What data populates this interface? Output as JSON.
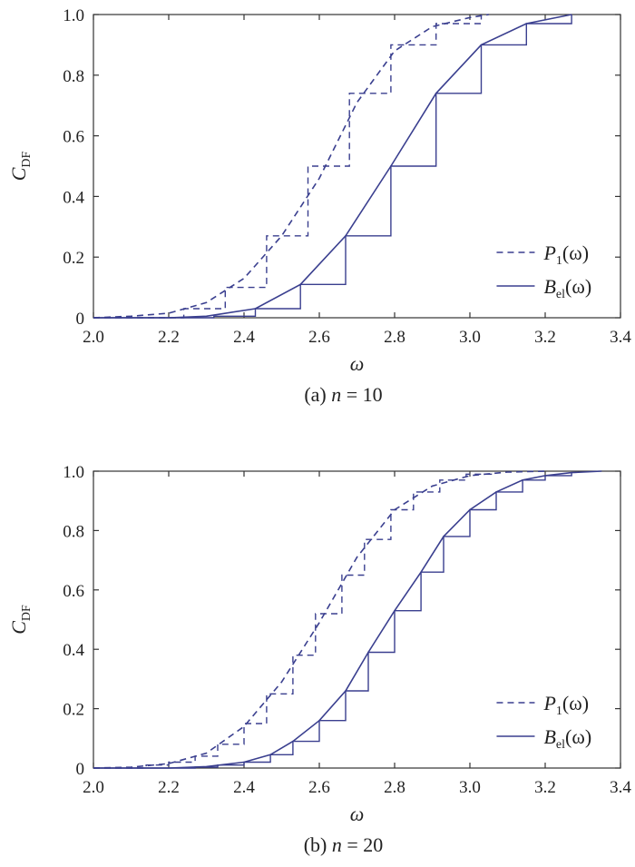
{
  "chart_data": [
    {
      "type": "line",
      "caption": {
        "prefix": "(a)",
        "var": "n",
        "eq": "= 10"
      },
      "xlabel": "ω",
      "ylabel": {
        "main": "C",
        "sub": "DF"
      },
      "xlim": [
        2.0,
        3.4
      ],
      "ylim": [
        0,
        1.0
      ],
      "xticks": [
        "2.0",
        "2.2",
        "2.4",
        "2.6",
        "2.8",
        "3.0",
        "3.2",
        "3.4"
      ],
      "yticks": [
        "0",
        "0.2",
        "0.4",
        "0.6",
        "0.8",
        "1.0"
      ],
      "legend_position": "bottom-right",
      "color": "#3a3f8f",
      "series": [
        {
          "name": "P1(ω)",
          "name_main": "P",
          "name_sub": "1",
          "name_arg": "(ω)",
          "style": "dashed",
          "smooth": [
            [
              2.0,
              0.0
            ],
            [
              2.1,
              0.005
            ],
            [
              2.2,
              0.015
            ],
            [
              2.3,
              0.05
            ],
            [
              2.4,
              0.13
            ],
            [
              2.5,
              0.27
            ],
            [
              2.6,
              0.46
            ],
            [
              2.7,
              0.71
            ],
            [
              2.8,
              0.88
            ],
            [
              2.9,
              0.96
            ],
            [
              3.0,
              0.99
            ],
            [
              3.05,
              1.0
            ]
          ],
          "step": [
            [
              2.0,
              0.0
            ],
            [
              2.24,
              0.03
            ],
            [
              2.35,
              0.1
            ],
            [
              2.46,
              0.27
            ],
            [
              2.57,
              0.5
            ],
            [
              2.68,
              0.74
            ],
            [
              2.79,
              0.9
            ],
            [
              2.91,
              0.97
            ],
            [
              3.03,
              1.0
            ]
          ]
        },
        {
          "name": "Bel(ω)",
          "name_main": "B",
          "name_sub": "el",
          "name_arg": "(ω)",
          "style": "solid",
          "smooth": [
            [
              2.0,
              0.0
            ],
            [
              2.2,
              0.0
            ],
            [
              2.3,
              0.005
            ],
            [
              2.43,
              0.03
            ],
            [
              2.55,
              0.11
            ],
            [
              2.67,
              0.27
            ],
            [
              2.79,
              0.5
            ],
            [
              2.91,
              0.74
            ],
            [
              3.03,
              0.9
            ],
            [
              3.15,
              0.97
            ],
            [
              3.27,
              1.0
            ]
          ],
          "step": [
            [
              2.0,
              0.0
            ],
            [
              2.32,
              0.005
            ],
            [
              2.43,
              0.03
            ],
            [
              2.55,
              0.11
            ],
            [
              2.67,
              0.27
            ],
            [
              2.79,
              0.5
            ],
            [
              2.91,
              0.74
            ],
            [
              3.03,
              0.9
            ],
            [
              3.15,
              0.97
            ],
            [
              3.27,
              1.0
            ]
          ]
        }
      ]
    },
    {
      "type": "line",
      "caption": {
        "prefix": "(b)",
        "var": "n",
        "eq": "= 20"
      },
      "xlabel": "ω",
      "ylabel": {
        "main": "C",
        "sub": "DF"
      },
      "xlim": [
        2.0,
        3.4
      ],
      "ylim": [
        0,
        1.0
      ],
      "xticks": [
        "2.0",
        "2.2",
        "2.4",
        "2.6",
        "2.8",
        "3.0",
        "3.2",
        "3.4"
      ],
      "yticks": [
        "0",
        "0.2",
        "0.4",
        "0.6",
        "0.8",
        "1.0"
      ],
      "legend_position": "bottom-right",
      "color": "#3a3f8f",
      "series": [
        {
          "name": "P1(ω)",
          "name_main": "P",
          "name_sub": "1",
          "name_arg": "(ω)",
          "style": "dashed",
          "smooth": [
            [
              2.0,
              0.0
            ],
            [
              2.1,
              0.003
            ],
            [
              2.2,
              0.015
            ],
            [
              2.3,
              0.05
            ],
            [
              2.4,
              0.14
            ],
            [
              2.5,
              0.29
            ],
            [
              2.6,
              0.49
            ],
            [
              2.7,
              0.71
            ],
            [
              2.8,
              0.87
            ],
            [
              2.9,
              0.95
            ],
            [
              3.0,
              0.985
            ],
            [
              3.1,
              0.997
            ],
            [
              3.2,
              1.0
            ]
          ],
          "step": [
            [
              2.0,
              0.0
            ],
            [
              2.14,
              0.01
            ],
            [
              2.2,
              0.02
            ],
            [
              2.27,
              0.04
            ],
            [
              2.33,
              0.08
            ],
            [
              2.4,
              0.15
            ],
            [
              2.46,
              0.25
            ],
            [
              2.53,
              0.38
            ],
            [
              2.59,
              0.52
            ],
            [
              2.66,
              0.65
            ],
            [
              2.72,
              0.77
            ],
            [
              2.79,
              0.87
            ],
            [
              2.85,
              0.93
            ],
            [
              2.92,
              0.97
            ],
            [
              2.99,
              0.99
            ],
            [
              3.06,
              1.0
            ]
          ]
        },
        {
          "name": "Bel(ω)",
          "name_main": "B",
          "name_sub": "el",
          "name_arg": "(ω)",
          "style": "solid",
          "smooth": [
            [
              2.0,
              0.0
            ],
            [
              2.2,
              0.0
            ],
            [
              2.3,
              0.005
            ],
            [
              2.4,
              0.02
            ],
            [
              2.47,
              0.045
            ],
            [
              2.53,
              0.09
            ],
            [
              2.6,
              0.16
            ],
            [
              2.67,
              0.26
            ],
            [
              2.73,
              0.39
            ],
            [
              2.8,
              0.53
            ],
            [
              2.87,
              0.66
            ],
            [
              2.93,
              0.78
            ],
            [
              3.0,
              0.87
            ],
            [
              3.07,
              0.93
            ],
            [
              3.14,
              0.97
            ],
            [
              3.2,
              0.985
            ],
            [
              3.27,
              0.995
            ],
            [
              3.35,
              1.0
            ]
          ],
          "step": [
            [
              2.0,
              0.0
            ],
            [
              2.27,
              0.003
            ],
            [
              2.33,
              0.01
            ],
            [
              2.4,
              0.02
            ],
            [
              2.47,
              0.045
            ],
            [
              2.53,
              0.09
            ],
            [
              2.6,
              0.16
            ],
            [
              2.67,
              0.26
            ],
            [
              2.73,
              0.39
            ],
            [
              2.8,
              0.53
            ],
            [
              2.87,
              0.66
            ],
            [
              2.93,
              0.78
            ],
            [
              3.0,
              0.87
            ],
            [
              3.07,
              0.93
            ],
            [
              3.14,
              0.97
            ],
            [
              3.2,
              0.985
            ],
            [
              3.27,
              0.995
            ]
          ]
        }
      ]
    }
  ]
}
